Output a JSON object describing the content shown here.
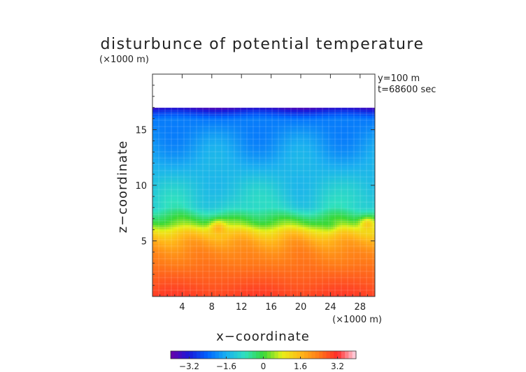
{
  "chart_data": {
    "type": "heatmap",
    "title": "disturbunce of potential temperature",
    "xlabel": "x−coordinate",
    "ylabel": "z−coordinate",
    "x_unit": "(×1000 m)",
    "y_unit": "(×1000 m)",
    "annotations": [
      "y=100 m",
      "t=68600 sec"
    ],
    "xlim": [
      0,
      30
    ],
    "ylim": [
      0,
      20
    ],
    "x_ticks": [
      4,
      8,
      12,
      16,
      20,
      24,
      28
    ],
    "y_ticks": [
      5,
      10,
      15
    ],
    "data_top_z": 17,
    "colorbar": {
      "range": [
        -4,
        4
      ],
      "tick_values": [
        -3.2,
        -1.6,
        0,
        1.6,
        3.2
      ],
      "tick_labels": [
        "−3.2",
        "−1.6",
        "0",
        "1.6",
        "3.2"
      ]
    },
    "colormap": [
      "#6a00a8",
      "#1a1ad8",
      "#0066ff",
      "#1ab0f0",
      "#2fe0c0",
      "#38d838",
      "#e8f018",
      "#ffb818",
      "#ff7a18",
      "#ff2a2a",
      "#ffd8e8"
    ],
    "mean_profile_z": [
      0,
      2,
      4,
      5,
      5.8,
      6.5,
      8,
      12,
      16,
      16.8,
      17
    ],
    "mean_profile_value": [
      3.0,
      2.6,
      2.2,
      1.8,
      1.2,
      0.3,
      -1.0,
      -1.6,
      -2.2,
      -3.2,
      -3.8
    ],
    "features": [
      {
        "x": 8.8,
        "z": 6.3,
        "value": 1.7
      },
      {
        "x": 29,
        "z": 6.6,
        "value": 1.5
      },
      {
        "x": 4,
        "z": 7.5,
        "value": -0.5
      },
      {
        "x": 24,
        "z": 6.2,
        "value": 0.3
      }
    ]
  }
}
